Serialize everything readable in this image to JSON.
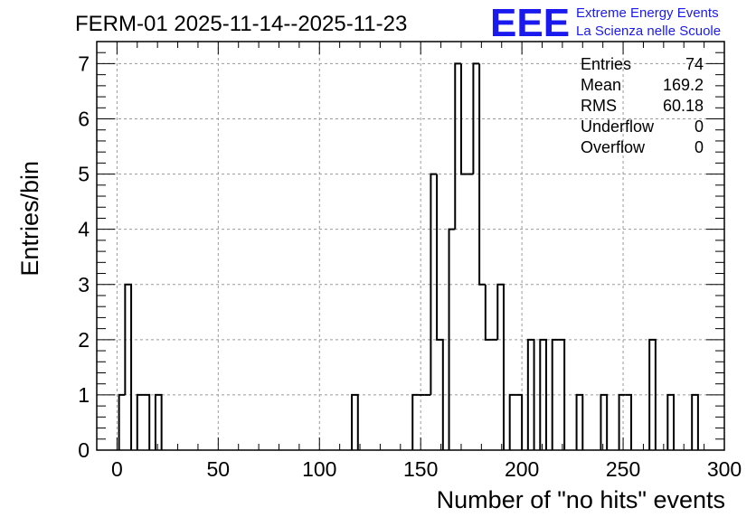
{
  "chart_data": {
    "type": "bar",
    "title": "FERM-01 2025-11-14--2025-11-23",
    "xlabel": "Number of \"no hits\" events",
    "ylabel": "Entries/bin",
    "xlim": [
      -10,
      300
    ],
    "ylim": [
      0,
      7.4
    ],
    "grid": true,
    "bin_width": 3,
    "bins": [
      {
        "x0": 1,
        "y": 1
      },
      {
        "x0": 4,
        "y": 3
      },
      {
        "x0": 10,
        "y": 1
      },
      {
        "x0": 13,
        "y": 1
      },
      {
        "x0": 19,
        "y": 1
      },
      {
        "x0": 116,
        "y": 1
      },
      {
        "x0": 146,
        "y": 1
      },
      {
        "x0": 149,
        "y": 1
      },
      {
        "x0": 152,
        "y": 1
      },
      {
        "x0": 155,
        "y": 5
      },
      {
        "x0": 158,
        "y": 2
      },
      {
        "x0": 164,
        "y": 4
      },
      {
        "x0": 167,
        "y": 7
      },
      {
        "x0": 170,
        "y": 5
      },
      {
        "x0": 173,
        "y": 5
      },
      {
        "x0": 176,
        "y": 7
      },
      {
        "x0": 179,
        "y": 3
      },
      {
        "x0": 182,
        "y": 2
      },
      {
        "x0": 185,
        "y": 2
      },
      {
        "x0": 188,
        "y": 3
      },
      {
        "x0": 194,
        "y": 1
      },
      {
        "x0": 197,
        "y": 1
      },
      {
        "x0": 203,
        "y": 2
      },
      {
        "x0": 209,
        "y": 2
      },
      {
        "x0": 215,
        "y": 2
      },
      {
        "x0": 218,
        "y": 2
      },
      {
        "x0": 227,
        "y": 1
      },
      {
        "x0": 239,
        "y": 1
      },
      {
        "x0": 248,
        "y": 1
      },
      {
        "x0": 251,
        "y": 1
      },
      {
        "x0": 263,
        "y": 2
      },
      {
        "x0": 272,
        "y": 1
      },
      {
        "x0": 284,
        "y": 1
      }
    ],
    "x_ticks": [
      "0",
      "50",
      "100",
      "150",
      "200",
      "250",
      "300"
    ],
    "y_ticks": [
      "0",
      "1",
      "2",
      "3",
      "4",
      "5",
      "6",
      "7"
    ],
    "legend_position": "top-right",
    "stats": [
      {
        "label": "Entries",
        "value": "74"
      },
      {
        "label": "Mean",
        "value": "169.2"
      },
      {
        "label": "RMS",
        "value": "60.18"
      },
      {
        "label": "Underflow",
        "value": "0"
      },
      {
        "label": "Overflow",
        "value": "0"
      }
    ]
  },
  "logo": {
    "mark": "EEE",
    "line1": "Extreme Energy Events",
    "line2": "La Scienza nelle Scuole",
    "color": "#1a1aee"
  }
}
